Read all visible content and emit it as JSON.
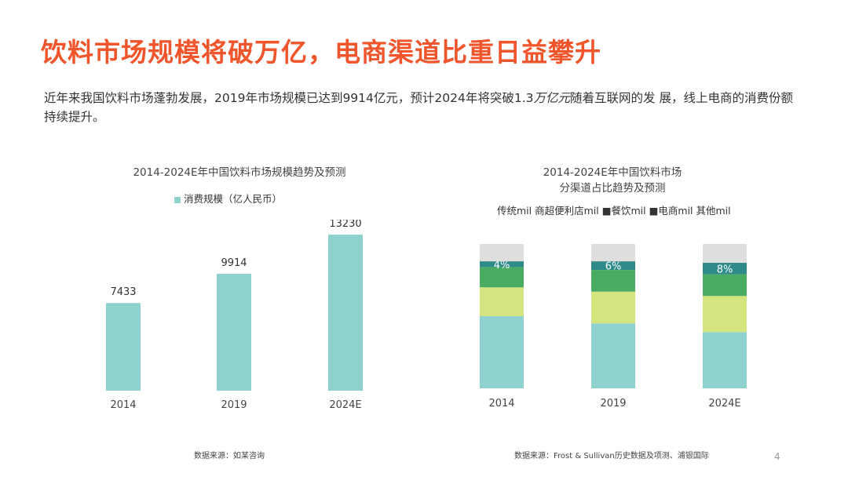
{
  "title": "饮料市场规模将破万亿，电商渠道比重日益攀升",
  "intro": {
    "part1": "近年来我国饮料市场蓬勃发展，2019年市场规模已达到9914亿元，预计2024年将突破1.3",
    "italic": "万亿元",
    "part2": "随着互联网的发 展，线上电商的消费份额持续提升。"
  },
  "left_chart": {
    "title": "2014-2024E年中国饮料市场规模趋势及预测",
    "legend": "消费规模（亿人民币）",
    "source": "数据来源：如某咨询"
  },
  "right_chart": {
    "title_line1": "2014-2024E年中国饮料市场",
    "title_line2": "分渠道占比趋势及预测",
    "legend": "传统mil 商超便利店mil ■餐饮mil ■电商mil 其他mil",
    "source": "数据来源：Frost & Sullivan历史数据及项测、浦银国际"
  },
  "page_number": "4",
  "colors": {
    "title": "#f0552b",
    "bar": "#8fd1cf",
    "traditional": "#8fd1cf",
    "supermarket": "#d4e47e",
    "catering": "#4aab62",
    "ecommerce": "#2e8b8a",
    "other": "#dedede"
  },
  "chart_data": [
    {
      "type": "bar",
      "title": "2014-2024E年中国饮料市场规模趋势及预测",
      "categories": [
        "2014",
        "2019",
        "2024E"
      ],
      "series": [
        {
          "name": "消费规模（亿人民币）",
          "values": [
            7433,
            9914,
            13230
          ]
        }
      ],
      "labels": [
        "7433",
        "9914",
        "13230"
      ],
      "ylim": [
        0,
        14500
      ]
    },
    {
      "type": "bar",
      "stacked": true,
      "title": "2014-2024E年中国饮料市场分渠道占比趋势及预测",
      "categories": [
        "2014",
        "2019",
        "2024E"
      ],
      "series": [
        {
          "name": "传统",
          "values": [
            50,
            45,
            39
          ]
        },
        {
          "name": "商超便利店",
          "values": [
            20,
            22,
            25
          ]
        },
        {
          "name": "餐饮",
          "values": [
            14,
            15,
            15
          ]
        },
        {
          "name": "电商",
          "values": [
            4,
            6,
            8
          ]
        },
        {
          "name": "其他",
          "values": [
            12,
            12,
            13
          ]
        }
      ],
      "ecommerce_labels": [
        "4%",
        "6%",
        "8%"
      ],
      "ylim": [
        0,
        100
      ]
    }
  ]
}
